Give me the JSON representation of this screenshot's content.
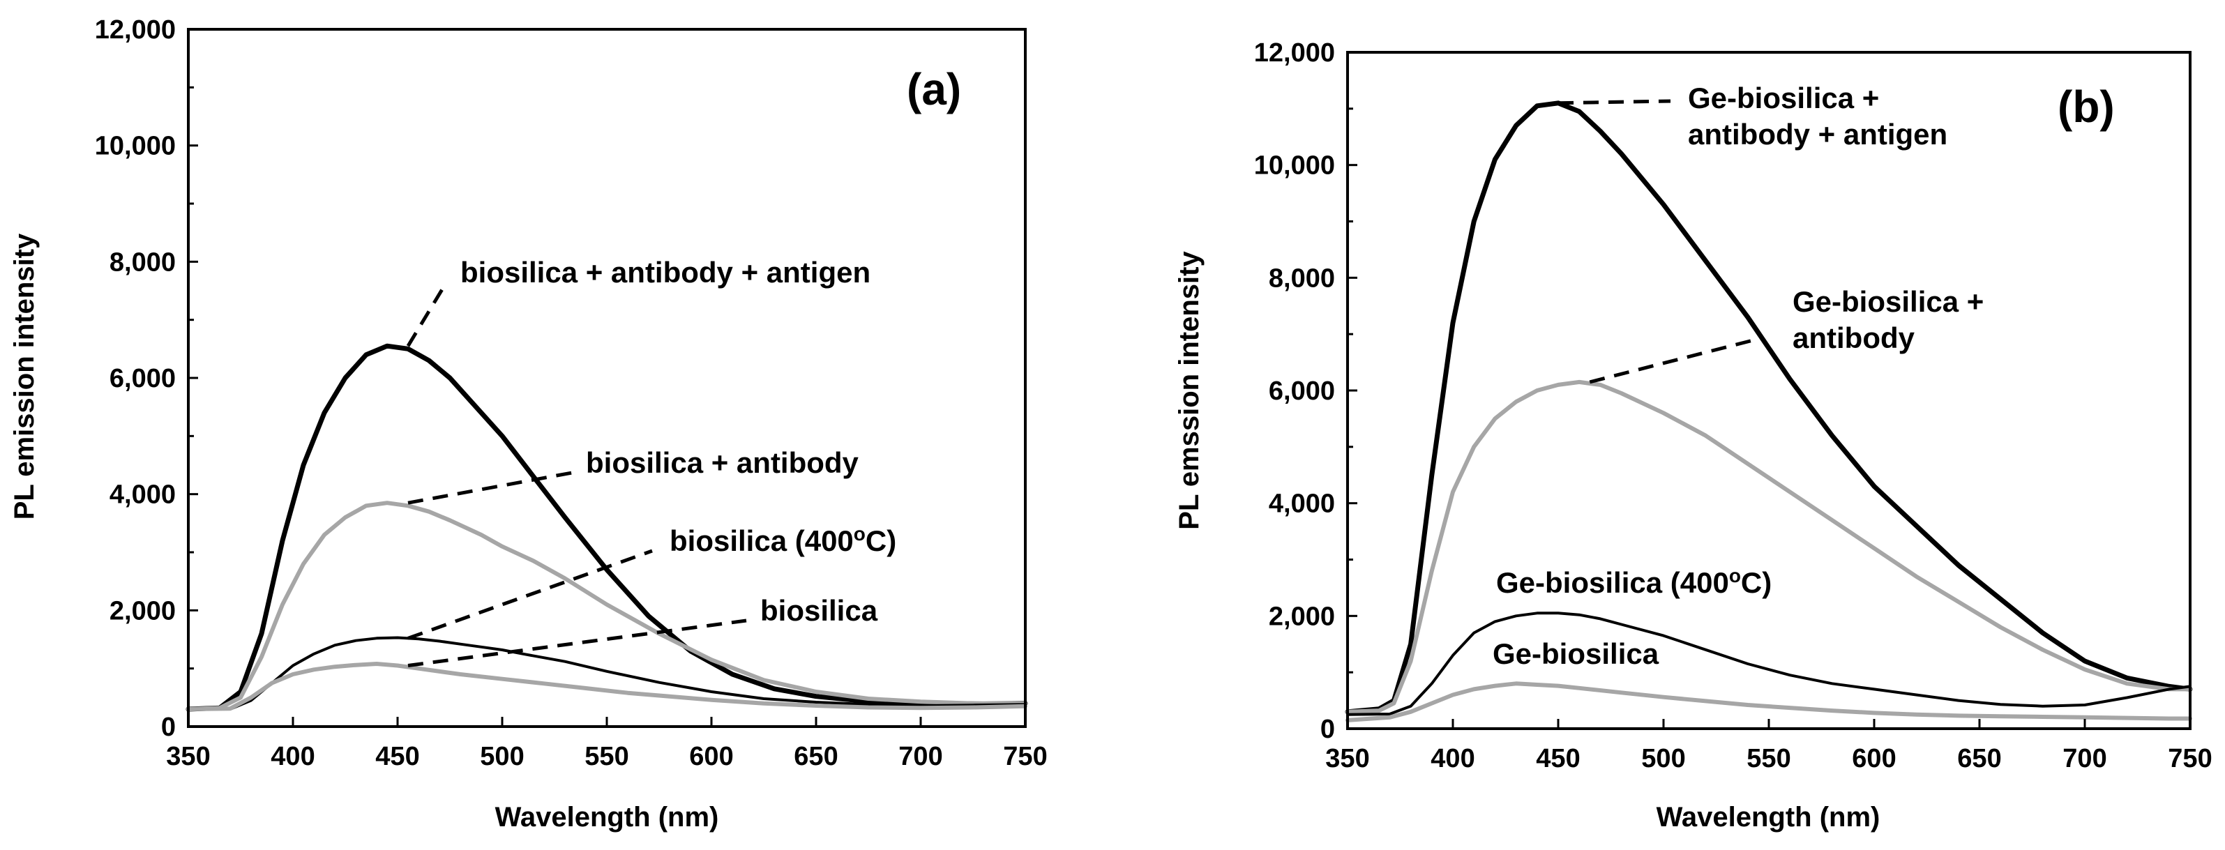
{
  "chart_data": [
    {
      "type": "line",
      "panel_label": "(a)",
      "xlabel": "Wavelength (nm)",
      "ylabel": "PL emission intensity",
      "xlim": [
        350,
        750
      ],
      "ylim": [
        0,
        12000
      ],
      "x_ticks": [
        350,
        400,
        450,
        500,
        550,
        600,
        650,
        700,
        750
      ],
      "x_tick_labels": [
        "350",
        "400",
        "450",
        "500",
        "550",
        "600",
        "650",
        "700",
        "750"
      ],
      "y_ticks": [
        0,
        2000,
        4000,
        6000,
        8000,
        10000,
        12000
      ],
      "y_tick_labels": [
        "0",
        "2,000",
        "4,000",
        "6,000",
        "8,000",
        "10,000",
        "12,000"
      ],
      "series": [
        {
          "name": "biosilica + antibody + antigen",
          "color": "#000000",
          "x": [
            350,
            365,
            375,
            385,
            395,
            405,
            415,
            425,
            435,
            445,
            455,
            465,
            475,
            485,
            500,
            515,
            530,
            550,
            570,
            590,
            610,
            630,
            650,
            670,
            690,
            710,
            730,
            750
          ],
          "y": [
            300,
            320,
            600,
            1600,
            3200,
            4500,
            5400,
            6000,
            6400,
            6550,
            6500,
            6300,
            6000,
            5600,
            5000,
            4300,
            3600,
            2700,
            1900,
            1300,
            900,
            650,
            520,
            450,
            420,
            400,
            390,
            400
          ]
        },
        {
          "name": "biosilica + antibody",
          "color": "#a6a6a6",
          "x": [
            350,
            365,
            375,
            385,
            395,
            405,
            415,
            425,
            435,
            445,
            455,
            465,
            475,
            490,
            500,
            515,
            530,
            550,
            575,
            600,
            625,
            650,
            675,
            700,
            725,
            750
          ],
          "y": [
            300,
            320,
            500,
            1200,
            2100,
            2800,
            3300,
            3600,
            3800,
            3850,
            3800,
            3700,
            3550,
            3300,
            3100,
            2850,
            2550,
            2100,
            1600,
            1150,
            800,
            600,
            480,
            430,
            400,
            400
          ]
        },
        {
          "name": "biosilica (400oC)",
          "color": "#000000",
          "x": [
            350,
            370,
            380,
            390,
            400,
            410,
            420,
            430,
            440,
            450,
            460,
            470,
            480,
            490,
            500,
            510,
            530,
            550,
            575,
            600,
            625,
            650,
            675,
            700,
            725,
            750
          ],
          "y": [
            300,
            300,
            450,
            750,
            1050,
            1250,
            1400,
            1480,
            1520,
            1530,
            1510,
            1470,
            1420,
            1370,
            1320,
            1250,
            1120,
            950,
            760,
            600,
            480,
            420,
            380,
            360,
            370,
            380
          ]
        },
        {
          "name": "biosilica",
          "color": "#a6a6a6",
          "x": [
            350,
            370,
            380,
            390,
            400,
            410,
            420,
            430,
            440,
            450,
            460,
            480,
            500,
            520,
            540,
            560,
            580,
            600,
            625,
            650,
            675,
            700,
            725,
            750
          ],
          "y": [
            300,
            310,
            500,
            750,
            900,
            980,
            1030,
            1060,
            1080,
            1050,
            1000,
            900,
            820,
            740,
            660,
            580,
            520,
            460,
            400,
            360,
            330,
            320,
            330,
            350
          ]
        }
      ],
      "annotations": [
        {
          "lines": [
            "biosilica + antibody + antigen"
          ],
          "series": "biosilica + antibody + antigen",
          "anchor": [
            455,
            6550
          ]
        },
        {
          "lines": [
            "biosilica + antibody"
          ],
          "series": "biosilica + antibody",
          "anchor": [
            455,
            3850
          ]
        },
        {
          "lines": [
            "biosilica (400",
            "o",
            "C)"
          ],
          "series": "biosilica (400oC)",
          "anchor": [
            455,
            1520
          ]
        },
        {
          "lines": [
            "biosilica"
          ],
          "series": "biosilica",
          "anchor": [
            455,
            1050
          ]
        }
      ]
    },
    {
      "type": "line",
      "panel_label": "(b)",
      "xlabel": "Wavelength (nm)",
      "ylabel": "PL emssion intensity",
      "xlim": [
        350,
        750
      ],
      "ylim": [
        0,
        12000
      ],
      "x_ticks": [
        350,
        400,
        450,
        500,
        550,
        600,
        650,
        700,
        750
      ],
      "x_tick_labels": [
        "350",
        "400",
        "450",
        "500",
        "550",
        "600",
        "650",
        "700",
        "750"
      ],
      "y_ticks": [
        0,
        2000,
        4000,
        6000,
        8000,
        10000,
        12000
      ],
      "y_tick_labels": [
        "0",
        "2,000",
        "4,000",
        "6,000",
        "8,000",
        "10,000",
        "12,000"
      ],
      "series": [
        {
          "name": "Ge-biosilica + antibody + antigen",
          "color": "#000000",
          "x": [
            350,
            365,
            372,
            380,
            390,
            400,
            410,
            420,
            430,
            440,
            450,
            460,
            470,
            480,
            500,
            520,
            540,
            560,
            580,
            600,
            620,
            640,
            660,
            680,
            700,
            720,
            740,
            750
          ],
          "y": [
            300,
            350,
            500,
            1500,
            4500,
            7200,
            9000,
            10100,
            10700,
            11050,
            11100,
            10950,
            10600,
            10200,
            9300,
            8300,
            7300,
            6200,
            5200,
            4300,
            3600,
            2900,
            2300,
            1700,
            1200,
            900,
            750,
            700
          ]
        },
        {
          "name": "Ge-biosilica + antibody",
          "color": "#a6a6a6",
          "x": [
            350,
            365,
            372,
            380,
            390,
            400,
            410,
            420,
            430,
            440,
            450,
            460,
            470,
            480,
            500,
            520,
            540,
            560,
            580,
            600,
            620,
            640,
            660,
            680,
            700,
            720,
            740,
            750
          ],
          "y": [
            300,
            320,
            450,
            1200,
            2800,
            4200,
            5000,
            5500,
            5800,
            6000,
            6100,
            6150,
            6100,
            5950,
            5600,
            5200,
            4700,
            4200,
            3700,
            3200,
            2700,
            2250,
            1800,
            1400,
            1050,
            800,
            700,
            700
          ]
        },
        {
          "name": "Ge-biosilica (400oC)",
          "color": "#000000",
          "x": [
            350,
            370,
            380,
            390,
            400,
            410,
            420,
            430,
            440,
            450,
            460,
            470,
            480,
            500,
            520,
            540,
            560,
            580,
            600,
            620,
            640,
            660,
            680,
            700,
            720,
            740,
            750
          ],
          "y": [
            250,
            260,
            400,
            800,
            1300,
            1700,
            1900,
            2000,
            2050,
            2050,
            2020,
            1950,
            1850,
            1650,
            1400,
            1150,
            950,
            800,
            700,
            600,
            500,
            430,
            400,
            420,
            550,
            700,
            750
          ]
        },
        {
          "name": "Ge-biosilica",
          "color": "#a6a6a6",
          "x": [
            350,
            370,
            380,
            390,
            400,
            410,
            420,
            430,
            440,
            450,
            460,
            480,
            500,
            520,
            540,
            560,
            580,
            600,
            620,
            640,
            660,
            680,
            700,
            720,
            740,
            750
          ],
          "y": [
            150,
            200,
            300,
            450,
            600,
            700,
            760,
            800,
            780,
            760,
            720,
            640,
            560,
            490,
            420,
            370,
            320,
            280,
            250,
            230,
            220,
            210,
            200,
            190,
            180,
            180
          ]
        }
      ],
      "annotations": [
        {
          "lines": [
            "Ge-biosilica +",
            "antibody + antigen"
          ],
          "series": "Ge-biosilica + antibody + antigen",
          "anchor": [
            450,
            11100
          ]
        },
        {
          "lines": [
            "Ge-biosilica +",
            "antibody"
          ],
          "series": "Ge-biosilica + antibody",
          "anchor": [
            465,
            6150
          ]
        },
        {
          "lines": [
            "Ge-biosilica (400",
            "o",
            "C)"
          ],
          "series": "Ge-biosilica (400oC)",
          "anchor": [
            450,
            2050
          ]
        },
        {
          "lines": [
            "Ge-biosilica"
          ],
          "series": "Ge-biosilica",
          "anchor": [
            450,
            760
          ]
        }
      ]
    }
  ]
}
